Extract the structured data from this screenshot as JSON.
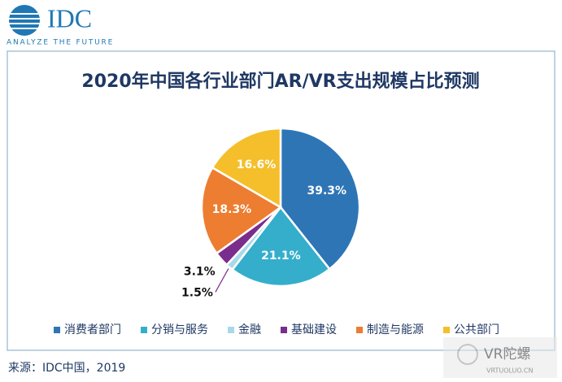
{
  "header": {
    "logo": "IDC",
    "tagline": "ANALYZE THE FUTURE"
  },
  "chart_data": {
    "type": "pie",
    "title": "2020年中国各行业部门AR/VR支出规模占比预测",
    "categories": [
      "消费者部门",
      "分销与服务",
      "金融",
      "基础建设",
      "制造与能源",
      "公共部门"
    ],
    "values": [
      39.3,
      21.1,
      1.5,
      3.1,
      18.3,
      16.6
    ],
    "value_labels": [
      "39.3%",
      "21.1%",
      "1.5%",
      "3.1%",
      "18.3%",
      "16.6%"
    ],
    "colors": [
      "#2e75b6",
      "#35aecb",
      "#a9d8ea",
      "#7a2d8c",
      "#ed7d31",
      "#f4bf2a"
    ],
    "legend": "bottom"
  },
  "source": "来源：IDC中国，2019",
  "watermark": {
    "name": "VR陀螺",
    "site": "VRTUOLUO.CN"
  }
}
